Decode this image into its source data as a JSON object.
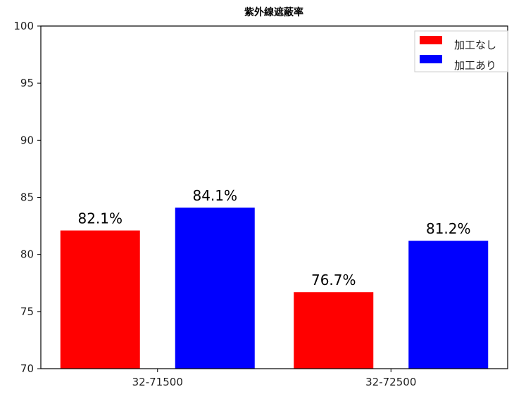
{
  "chart_data": {
    "type": "bar",
    "title": "紫外線遮蔽率",
    "xlabel": "",
    "ylabel": "",
    "categories": [
      "32-71500",
      "32-72500"
    ],
    "series": [
      {
        "name": "加工なし",
        "color": "#ff0000",
        "values": [
          82.1,
          76.7
        ],
        "labels": [
          "82.1%",
          "76.7%"
        ]
      },
      {
        "name": "加工あり",
        "color": "#0000ff",
        "values": [
          84.1,
          81.2
        ],
        "labels": [
          "84.1%",
          "81.2%"
        ]
      }
    ],
    "ylim": [
      70,
      100
    ],
    "yticks": [
      70,
      75,
      80,
      85,
      90,
      95,
      100
    ],
    "grid": false,
    "legend_position": "top-right"
  }
}
